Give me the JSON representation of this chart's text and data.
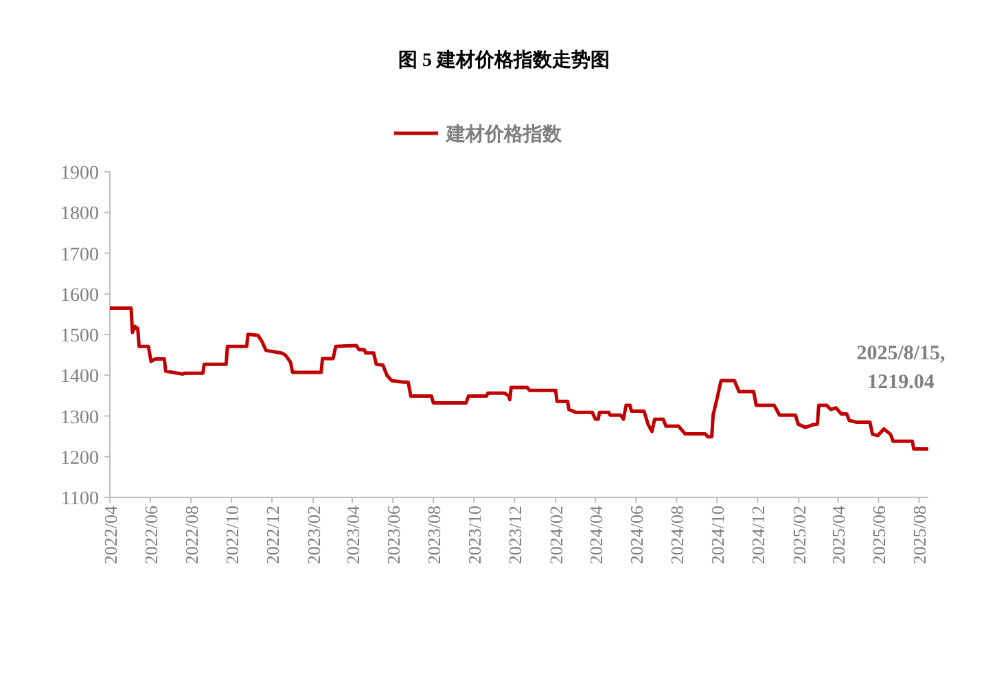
{
  "chart_data": {
    "type": "line",
    "title": "图 5  建材价格指数走势图",
    "legend": "top",
    "x": [
      "2022-04-01",
      "2022-05-03",
      "2022-05-05",
      "2022-05-09",
      "2022-05-13",
      "2022-05-15",
      "2022-05-29",
      "2022-06-02",
      "2022-06-08",
      "2022-06-22",
      "2022-06-24",
      "2022-07-12",
      "2022-07-20",
      "2022-07-22",
      "2022-08-19",
      "2022-08-21",
      "2022-09-23",
      "2022-09-25",
      "2022-10-24",
      "2022-10-26",
      "2022-11-10",
      "2022-11-16",
      "2022-11-22",
      "2022-12-15",
      "2022-12-21",
      "2022-12-29",
      "2023-01-01",
      "2023-02-13",
      "2023-02-15",
      "2023-03-03",
      "2023-03-07",
      "2023-04-07",
      "2023-04-11",
      "2023-04-19",
      "2023-04-21",
      "2023-05-03",
      "2023-05-07",
      "2023-05-17",
      "2023-05-23",
      "2023-05-30",
      "2023-06-17",
      "2023-06-24",
      "2023-06-28",
      "2023-07-29",
      "2023-08-01",
      "2023-09-19",
      "2023-09-23",
      "2023-10-20",
      "2023-10-22",
      "2023-11-16",
      "2023-11-22",
      "2023-11-24",
      "2023-11-26",
      "2023-12-20",
      "2023-12-24",
      "2024-02-01",
      "2024-02-03",
      "2024-02-19",
      "2024-02-21",
      "2024-03-02",
      "2024-03-27",
      "2024-04-01",
      "2024-04-05",
      "2024-04-07",
      "2024-04-21",
      "2024-04-23",
      "2024-05-09",
      "2024-05-13",
      "2024-05-17",
      "2024-05-23",
      "2024-05-25",
      "2024-06-13",
      "2024-06-19",
      "2024-06-25",
      "2024-06-29",
      "2024-07-12",
      "2024-07-16",
      "2024-08-04",
      "2024-08-14",
      "2024-09-13",
      "2024-09-17",
      "2024-09-23",
      "2024-09-25",
      "2024-10-01",
      "2024-10-07",
      "2024-10-27",
      "2024-11-03",
      "2024-11-25",
      "2024-11-29",
      "2024-12-26",
      "2025-01-03",
      "2025-01-27",
      "2025-01-31",
      "2025-02-11",
      "2025-02-21",
      "2025-03-01",
      "2025-03-03",
      "2025-03-15",
      "2025-03-21",
      "2025-03-29",
      "2025-04-06",
      "2025-04-14",
      "2025-04-18",
      "2025-04-28",
      "2025-05-19",
      "2025-05-23",
      "2025-05-31",
      "2025-06-09",
      "2025-06-19",
      "2025-06-23",
      "2025-07-22",
      "2025-07-24",
      "2025-08-15"
    ],
    "series": [
      {
        "name": "建材价格指数",
        "color": "#c00000",
        "values": [
          1565,
          1565,
          1505,
          1520,
          1515,
          1471,
          1471,
          1434,
          1440,
          1440,
          1410,
          1405,
          1403,
          1405,
          1405,
          1427,
          1427,
          1471,
          1471,
          1501,
          1498,
          1483,
          1461,
          1455,
          1450,
          1432,
          1407,
          1407,
          1441,
          1441,
          1471,
          1473,
          1463,
          1463,
          1455,
          1455,
          1427,
          1425,
          1400,
          1387,
          1383,
          1383,
          1349,
          1349,
          1332,
          1332,
          1349,
          1349,
          1356,
          1356,
          1350,
          1340,
          1370,
          1370,
          1363,
          1363,
          1336,
          1336,
          1316,
          1309,
          1309,
          1292,
          1292,
          1309,
          1309,
          1302,
          1302,
          1292,
          1326,
          1326,
          1312,
          1312,
          1280,
          1262,
          1292,
          1292,
          1275,
          1275,
          1256,
          1256,
          1249,
          1249,
          1302,
          1343,
          1387,
          1387,
          1360,
          1360,
          1326,
          1326,
          1302,
          1302,
          1280,
          1272,
          1278,
          1280,
          1326,
          1326,
          1316,
          1320,
          1305,
          1305,
          1289,
          1285,
          1285,
          1255,
          1252,
          1268,
          1255,
          1238,
          1238,
          1219,
          1219.04
        ]
      }
    ],
    "xlim": [
      "2022-04-01",
      "2025-08-15"
    ],
    "xticks": [
      {
        "value": "2022-04",
        "label": "2022/04"
      },
      {
        "value": "2022-06",
        "label": "2022/06"
      },
      {
        "value": "2022-08",
        "label": "2022/08"
      },
      {
        "value": "2022-10",
        "label": "2022/10"
      },
      {
        "value": "2022-12",
        "label": "2022/12"
      },
      {
        "value": "2023-02",
        "label": "2023/02"
      },
      {
        "value": "2023-04",
        "label": "2023/04"
      },
      {
        "value": "2023-06",
        "label": "2023/06"
      },
      {
        "value": "2023-08",
        "label": "2023/08"
      },
      {
        "value": "2023-10",
        "label": "2023/10"
      },
      {
        "value": "2023-12",
        "label": "2023/12"
      },
      {
        "value": "2024-02",
        "label": "2024/02"
      },
      {
        "value": "2024-04",
        "label": "2024/04"
      },
      {
        "value": "2024-06",
        "label": "2024/06"
      },
      {
        "value": "2024-08",
        "label": "2024/08"
      },
      {
        "value": "2024-10",
        "label": "2024/10"
      },
      {
        "value": "2024-12",
        "label": "2024/12"
      },
      {
        "value": "2025-02",
        "label": "2025/02"
      },
      {
        "value": "2025-04",
        "label": "2025/04"
      },
      {
        "value": "2025-06",
        "label": "2025/06"
      },
      {
        "value": "2025-08",
        "label": "2025/08"
      }
    ],
    "ylim": [
      1100,
      1900
    ],
    "yticks": [
      1100,
      1200,
      1300,
      1400,
      1500,
      1600,
      1700,
      1800,
      1900
    ],
    "annotations": [
      {
        "text": "2025/8/15,\n1219.04",
        "x": "2025-08-15",
        "y": 1219.04
      }
    ]
  }
}
